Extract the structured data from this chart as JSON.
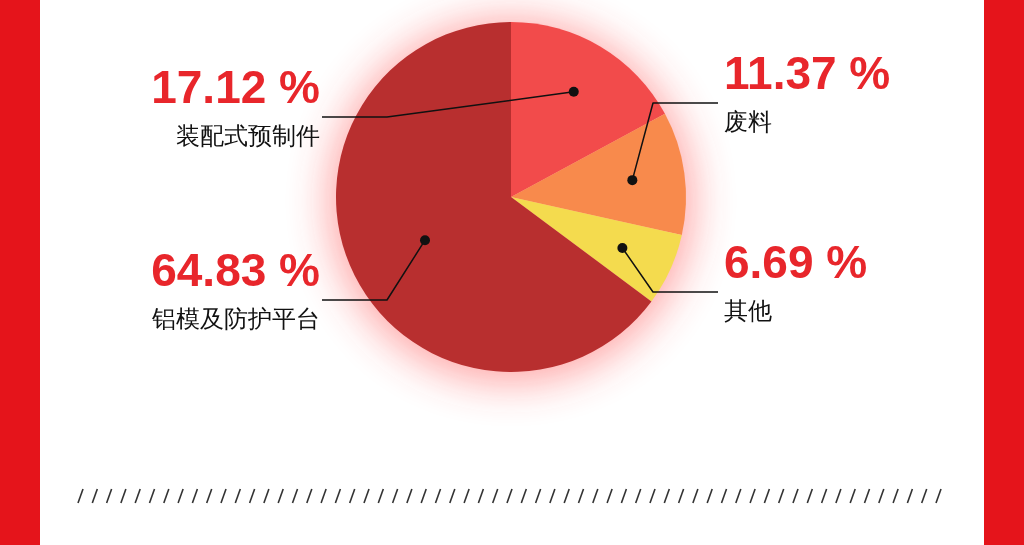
{
  "chart_data": {
    "type": "pie",
    "categories": [
      "装配式预制件",
      "废料",
      "其他",
      "铝模及防护平台"
    ],
    "values": [
      17.12,
      11.37,
      6.69,
      64.83
    ],
    "colors": [
      "#f24b4b",
      "#f88a4c",
      "#f4db4e",
      "#b82f2f"
    ],
    "value_labels": [
      "17.12 %",
      "11.37 %",
      "6.69 %",
      "64.83 %"
    ]
  }
}
